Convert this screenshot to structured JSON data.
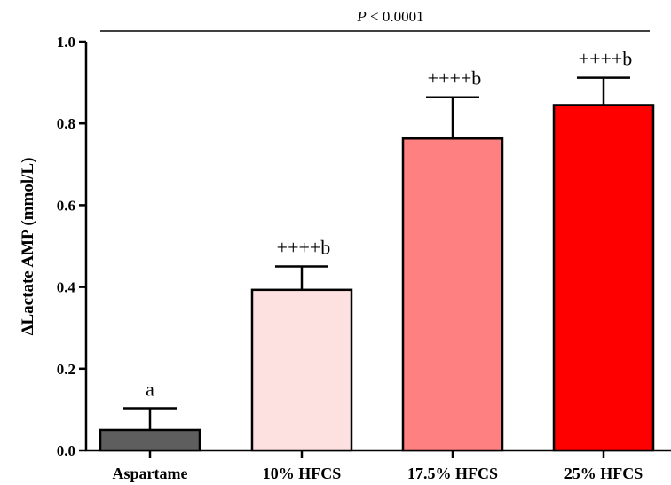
{
  "chart_data": {
    "type": "bar",
    "categories": [
      "Aspartame",
      "10% HFCS",
      "17.5% HFCS",
      "25% HFCS"
    ],
    "values": [
      0.05,
      0.393,
      0.763,
      0.845
    ],
    "errors": [
      0.053,
      0.057,
      0.101,
      0.067
    ],
    "bar_colors": [
      "#5e5e5e",
      "#fde0e0",
      "#ff8080",
      "#ff0000"
    ],
    "annotations": [
      "a",
      "++++b",
      "++++b",
      "++++b"
    ],
    "xlabel": "",
    "ylabel": "ΔLactate AMP (mmol/L)",
    "ylim": [
      0,
      1.0
    ],
    "yticks": [
      0.0,
      0.2,
      0.4,
      0.6,
      0.8,
      1.0
    ],
    "ytick_labels": [
      "0.0",
      "0.2",
      "0.4",
      "0.6",
      "0.8",
      "1.0"
    ],
    "significance": {
      "p_symbol": "P",
      "p_text": " < 0.0001"
    },
    "grid": false,
    "legend": "none"
  }
}
